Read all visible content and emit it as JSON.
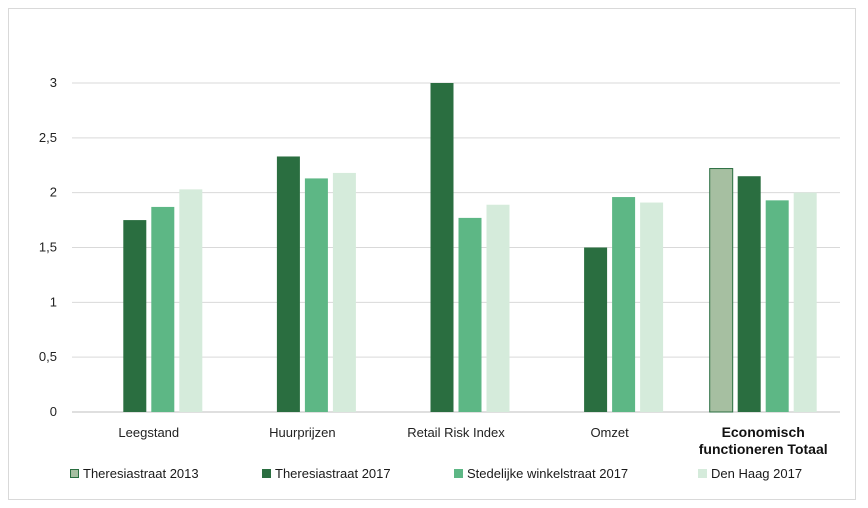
{
  "chart_data": {
    "type": "bar",
    "categories": [
      "Leegstand",
      "Huurprijzen",
      "Retail Risk Index",
      "Omzet",
      "Economisch\nfunctioneren Totaal"
    ],
    "series": [
      {
        "name": "Theresiastraat 2013",
        "color": "#a6bfa1",
        "values": [
          null,
          null,
          null,
          null,
          2.22
        ]
      },
      {
        "name": "Theresiastraat 2017",
        "color": "#2a6e40",
        "values": [
          1.75,
          2.33,
          3.0,
          1.5,
          2.15
        ]
      },
      {
        "name": "Stedelijke winkelstraat 2017",
        "color": "#5db785",
        "values": [
          1.87,
          2.13,
          1.77,
          1.96,
          1.93
        ]
      },
      {
        "name": "Den Haag 2017",
        "color": "#d5ebdb",
        "values": [
          2.03,
          2.18,
          1.89,
          1.91,
          2.0
        ]
      }
    ],
    "ylim": [
      0,
      3
    ],
    "yticks": [
      "0",
      "0,5",
      "1",
      "1,5",
      "2",
      "2,5",
      "3"
    ],
    "grid": true,
    "legend": "bottom",
    "title": "",
    "xlabel": "",
    "ylabel": ""
  }
}
